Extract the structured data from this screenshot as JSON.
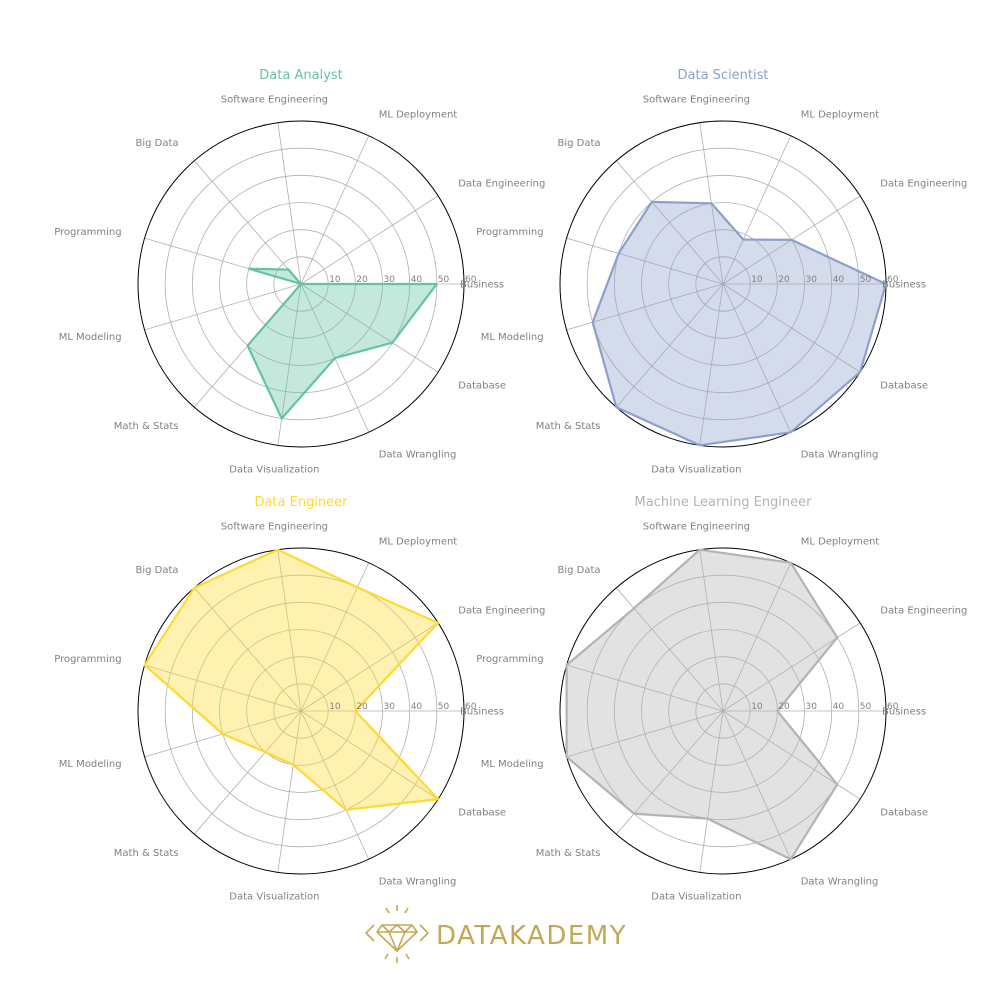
{
  "chart_data": [
    {
      "type": "radar",
      "title": "Data Analyst",
      "color": "#66c2a5",
      "axes": [
        "Business",
        "Data Engineering",
        "ML Deployment",
        "Software Engineering",
        "Big Data",
        "Programming",
        "ML Modeling",
        "Math & Stats",
        "Data Visualization",
        "Data Wrangling",
        "Database"
      ],
      "ticks": [
        "10",
        "20",
        "30",
        "40",
        "50",
        "60"
      ],
      "rlim": [
        0,
        60
      ],
      "values": [
        50,
        0,
        0,
        0,
        7,
        20,
        0,
        30,
        50,
        30,
        40
      ]
    },
    {
      "type": "radar",
      "title": "Data Scientist",
      "color": "#8da0cb",
      "axes": [
        "Business",
        "Data Engineering",
        "ML Deployment",
        "Software Engineering",
        "Big Data",
        "Programming",
        "ML Modeling",
        "Math & Stats",
        "Data Visualization",
        "Data Wrangling",
        "Database"
      ],
      "ticks": [
        "10",
        "20",
        "30",
        "40",
        "50",
        "60"
      ],
      "rlim": [
        0,
        60
      ],
      "values": [
        60,
        30,
        18,
        30,
        40,
        40,
        50,
        60,
        60,
        60,
        60
      ]
    },
    {
      "type": "radar",
      "title": "Data Engineer",
      "color": "#ffd92f",
      "axes": [
        "Business",
        "Data Engineering",
        "ML Deployment",
        "Software Engineering",
        "Big Data",
        "Programming",
        "ML Modeling",
        "Math & Stats",
        "Data Visualization",
        "Data Wrangling",
        "Database"
      ],
      "ticks": [
        "10",
        "20",
        "30",
        "40",
        "50",
        "60"
      ],
      "rlim": [
        0,
        60
      ],
      "values": [
        20,
        60,
        50,
        60,
        60,
        60,
        30,
        20,
        20,
        40,
        60
      ]
    },
    {
      "type": "radar",
      "title": "Machine Learning Engineer",
      "color": "#b3b3b3",
      "axes": [
        "Business",
        "Data Engineering",
        "ML Deployment",
        "Software Engineering",
        "Big Data",
        "Programming",
        "ML Modeling",
        "Math & Stats",
        "Data Visualization",
        "Data Wrangling",
        "Database"
      ],
      "ticks": [
        "10",
        "20",
        "30",
        "40",
        "50",
        "60"
      ],
      "rlim": [
        0,
        60
      ],
      "values": [
        20,
        50,
        60,
        60,
        50,
        60,
        60,
        50,
        40,
        60,
        50
      ]
    }
  ],
  "brand": {
    "name": "DATAKADEMY",
    "color": "#c4a755",
    "icon": "diamond-logo-icon"
  }
}
